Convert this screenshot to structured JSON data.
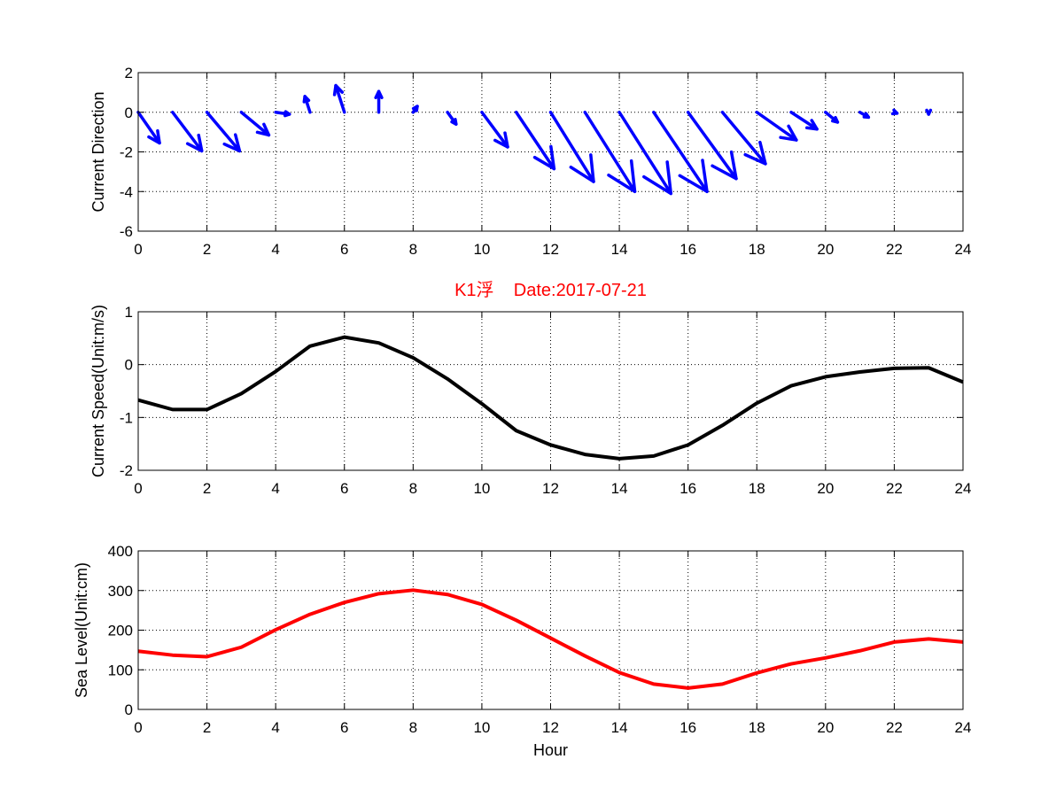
{
  "chart_data": [
    {
      "type": "quiver",
      "ylabel": "Current Direction",
      "xlim": [
        0,
        24
      ],
      "ylim": [
        -6,
        2
      ],
      "xticks": [
        0,
        2,
        4,
        6,
        8,
        10,
        12,
        14,
        16,
        18,
        20,
        22,
        24
      ],
      "yticks": [
        -6,
        -4,
        -2,
        0,
        2
      ],
      "grid": true,
      "color": "#0000ff",
      "x": [
        0,
        1,
        2,
        3,
        4,
        5,
        6,
        7,
        8,
        9,
        10,
        11,
        12,
        13,
        14,
        15,
        16,
        17,
        18,
        19,
        20,
        21,
        22,
        23
      ],
      "u": [
        0.62,
        0.85,
        0.95,
        0.8,
        0.4,
        -0.15,
        -0.25,
        0.0,
        0.12,
        0.25,
        0.75,
        1.1,
        1.25,
        1.45,
        1.5,
        1.55,
        1.4,
        1.25,
        1.15,
        0.75,
        0.35,
        0.25,
        0.08,
        0.0
      ],
      "v": [
        -1.55,
        -1.95,
        -1.95,
        -1.15,
        -0.1,
        0.8,
        1.35,
        1.05,
        0.3,
        -0.6,
        -1.75,
        -2.85,
        -3.5,
        -4.0,
        -4.1,
        -4.0,
        -3.35,
        -2.6,
        -1.4,
        -0.85,
        -0.5,
        -0.25,
        -0.05,
        -0.1
      ]
    },
    {
      "type": "line",
      "title": "K1浮    Date:2017-07-21",
      "ylabel": "Current Speed(Unit:m/s)",
      "xlim": [
        0,
        24
      ],
      "ylim": [
        -2,
        1
      ],
      "xticks": [
        0,
        2,
        4,
        6,
        8,
        10,
        12,
        14,
        16,
        18,
        20,
        22,
        24
      ],
      "yticks": [
        -2,
        -1,
        0,
        1
      ],
      "grid": true,
      "color": "#000000",
      "x": [
        0,
        1,
        2,
        3,
        4,
        5,
        6,
        7,
        8,
        9,
        10,
        11,
        12,
        13,
        14,
        15,
        16,
        17,
        18,
        19,
        20,
        21,
        22,
        23,
        24
      ],
      "y": [
        -0.67,
        -0.85,
        -0.85,
        -0.55,
        -0.13,
        0.35,
        0.52,
        0.41,
        0.13,
        -0.27,
        -0.74,
        -1.25,
        -1.52,
        -1.7,
        -1.78,
        -1.73,
        -1.52,
        -1.15,
        -0.73,
        -0.4,
        -0.23,
        -0.14,
        -0.07,
        -0.06,
        -0.33
      ]
    },
    {
      "type": "line",
      "xlabel": "Hour",
      "ylabel": "Sea Level(Unit:cm)",
      "xlim": [
        0,
        24
      ],
      "ylim": [
        0,
        400
      ],
      "xticks": [
        0,
        2,
        4,
        6,
        8,
        10,
        12,
        14,
        16,
        18,
        20,
        22,
        24
      ],
      "yticks": [
        0,
        100,
        200,
        300,
        400
      ],
      "grid": true,
      "color": "#ff0000",
      "x": [
        0,
        1,
        2,
        3,
        4,
        5,
        6,
        7,
        8,
        9,
        10,
        11,
        12,
        13,
        14,
        15,
        16,
        17,
        18,
        19,
        20,
        21,
        22,
        23,
        24
      ],
      "y": [
        147,
        137,
        133,
        157,
        201,
        240,
        270,
        292,
        301,
        290,
        265,
        225,
        180,
        135,
        93,
        64,
        54,
        64,
        92,
        115,
        130,
        148,
        170,
        178,
        170
      ]
    }
  ]
}
